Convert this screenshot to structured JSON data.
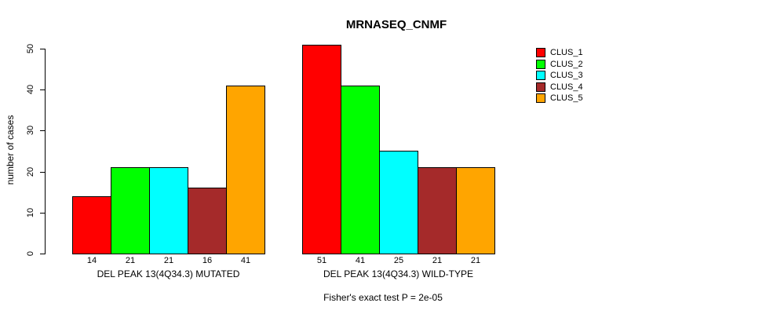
{
  "title": "MRNASEQ_CNMF",
  "y_axis": {
    "label": "number of cases",
    "ticks": [
      "0",
      "10",
      "20",
      "30",
      "40",
      "50"
    ]
  },
  "legend": {
    "items": [
      {
        "label": "CLUS_1",
        "color": "#FF0000"
      },
      {
        "label": "CLUS_2",
        "color": "#00FF00"
      },
      {
        "label": "CLUS_3",
        "color": "#00FFFF"
      },
      {
        "label": "CLUS_4",
        "color": "#A52A2A"
      },
      {
        "label": "CLUS_5",
        "color": "#FFA500"
      }
    ]
  },
  "footnote": "Fisher's exact test P = 2e-05",
  "chart_data": {
    "type": "bar",
    "title": "MRNASEQ_CNMF",
    "xlabel": "",
    "ylabel": "number of cases",
    "ylim": [
      0,
      50
    ],
    "grid": false,
    "legend_position": "right-outside",
    "bar_value_labels": true,
    "annotation": "Fisher's exact test P = 2e-05",
    "series": [
      {
        "name": "CLUS_1",
        "color": "#FF0000"
      },
      {
        "name": "CLUS_2",
        "color": "#00FF00"
      },
      {
        "name": "CLUS_3",
        "color": "#00FFFF"
      },
      {
        "name": "CLUS_4",
        "color": "#A52A2A"
      },
      {
        "name": "CLUS_5",
        "color": "#FFA500"
      }
    ],
    "groups": [
      {
        "label": "DEL PEAK 13(4Q34.3) MUTATED",
        "values": [
          14,
          21,
          21,
          16,
          41
        ]
      },
      {
        "label": "DEL PEAK 13(4Q34.3) WILD-TYPE",
        "values": [
          51,
          41,
          25,
          21,
          21
        ]
      }
    ]
  }
}
